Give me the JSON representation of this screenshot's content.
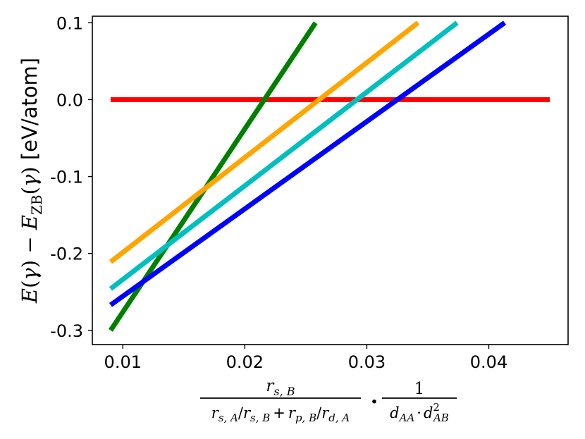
{
  "chart_data": {
    "type": "line",
    "title": "",
    "ylabel": {
      "E": "E",
      "gamma": "γ",
      "minus": "−",
      "zb": "ZB",
      "unit": " [eV/atom]"
    },
    "xlabel": {
      "rs": "r",
      "sB": "s, B",
      "sA": "s, A",
      "pB": "p, B",
      "dA": "d, A",
      "slash": "/",
      "plus": "+",
      "dot": "·",
      "one": "1",
      "d": "d",
      "AA": "AA",
      "AB": "AB",
      "two": "2"
    },
    "xlim": [
      0.0075,
      0.0465
    ],
    "ylim": [
      -0.3185,
      0.1085
    ],
    "grid": false,
    "xticks": [
      {
        "value": 0.01,
        "label": "0.01"
      },
      {
        "value": 0.02,
        "label": "0.02"
      },
      {
        "value": 0.03,
        "label": "0.03"
      },
      {
        "value": 0.04,
        "label": "0.04"
      }
    ],
    "yticks": [
      {
        "value": 0.1,
        "label": "0.1"
      },
      {
        "value": 0.0,
        "label": "0.0"
      },
      {
        "value": -0.1,
        "label": "-0.1"
      },
      {
        "value": -0.2,
        "label": "-0.2"
      },
      {
        "value": -0.3,
        "label": "-0.3"
      }
    ],
    "series": [
      {
        "color": "#ff0000",
        "x": [
          0.009,
          0.045
        ],
        "y": [
          0.0,
          0.0
        ]
      },
      {
        "color": "#008000",
        "x": [
          0.009,
          0.0258
        ],
        "y": [
          -0.3,
          0.1
        ]
      },
      {
        "color": "#ffa500",
        "x": [
          0.009,
          0.0342
        ],
        "y": [
          -0.211,
          0.1
        ]
      },
      {
        "color": "#00bfbf",
        "x": [
          0.009,
          0.0374
        ],
        "y": [
          -0.246,
          0.1
        ]
      },
      {
        "color": "#0000ff",
        "x": [
          0.009,
          0.0413
        ],
        "y": [
          -0.267,
          0.1
        ]
      }
    ]
  }
}
